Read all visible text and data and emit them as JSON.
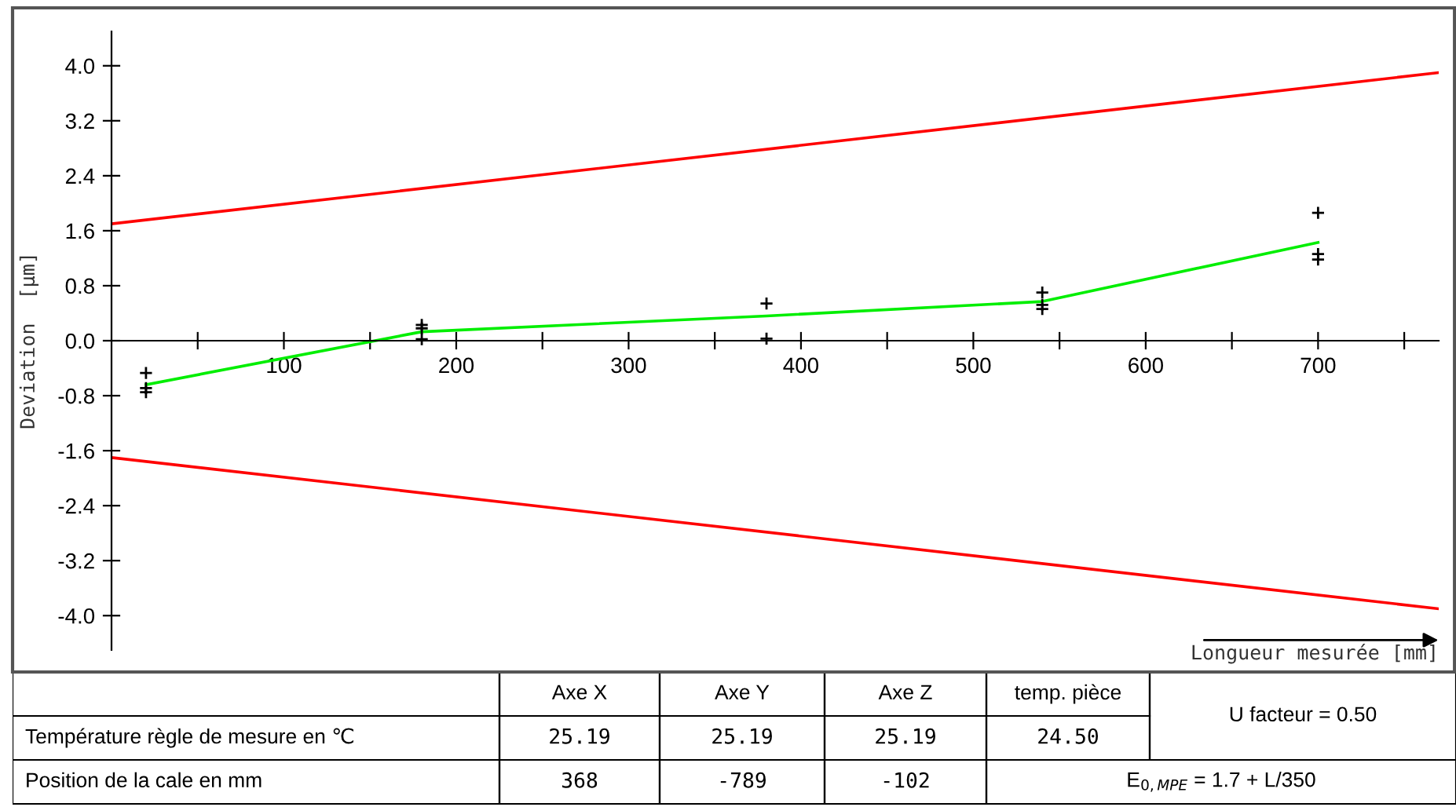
{
  "chart_data": [
    {
      "type": "line",
      "xlabel": "Longueur mesurée [mm]",
      "ylabel": "Deviation  [µm]",
      "xlim": [
        0,
        770
      ],
      "ylim": [
        -4.5,
        4.5
      ],
      "xticks": [
        {
          "value": 50,
          "label": null
        },
        100,
        {
          "value": 150,
          "label": null
        },
        200,
        {
          "value": 250,
          "label": null
        },
        300,
        {
          "value": 350,
          "label": null
        },
        400,
        {
          "value": 450,
          "label": null
        },
        500,
        {
          "value": 550,
          "label": null
        },
        600,
        {
          "value": 650,
          "label": null
        },
        700,
        {
          "value": 750,
          "label": null
        }
      ],
      "yticks": [
        {
          "value": 4.0,
          "label": "4.0"
        },
        3.2,
        2.4,
        1.6,
        0.8,
        {
          "value": 0.0,
          "label": "0.0"
        },
        -0.8,
        -1.6,
        -2.4,
        -3.2,
        {
          "value": -4.0,
          "label": "-4.0"
        }
      ],
      "grid": false,
      "legend": false,
      "series": [
        {
          "type": "line",
          "color": "#ff0000",
          "x": [
            0,
            770
          ],
          "values": [
            1.7,
            3.9
          ]
        },
        {
          "type": "line",
          "color": "#ff0000",
          "x": [
            0,
            770
          ],
          "values": [
            -1.7,
            -3.9
          ]
        },
        {
          "type": "line",
          "color": "#00ee00",
          "x": [
            20,
            180,
            380,
            540,
            700
          ],
          "values": [
            -0.64,
            0.13,
            0.36,
            0.57,
            1.43
          ]
        },
        {
          "type": "scatter",
          "color": "#000000",
          "marker": "cross",
          "x": [
            20,
            20,
            20,
            180,
            180,
            180,
            380,
            380,
            540,
            540,
            540,
            700,
            700,
            700
          ],
          "values": [
            -0.47,
            -0.69,
            -0.75,
            0.23,
            0.18,
            0.02,
            0.54,
            0.03,
            0.7,
            0.52,
            0.46,
            1.86,
            1.26,
            1.18
          ]
        }
      ]
    },
    {
      "type": "other",
      "annotations": [
        "Axe X",
        "Axe Y",
        "Axe Z",
        "temp. pièce",
        "U facteur = 0.50",
        "Température règle de mesure en ℃",
        "25.19",
        "25.19",
        "25.19",
        "24.50",
        "Position de la cale en mm",
        "368",
        "-789",
        "-102",
        "E$_{0,MPE}$ = 1.7 + L/350"
      ]
    }
  ]
}
